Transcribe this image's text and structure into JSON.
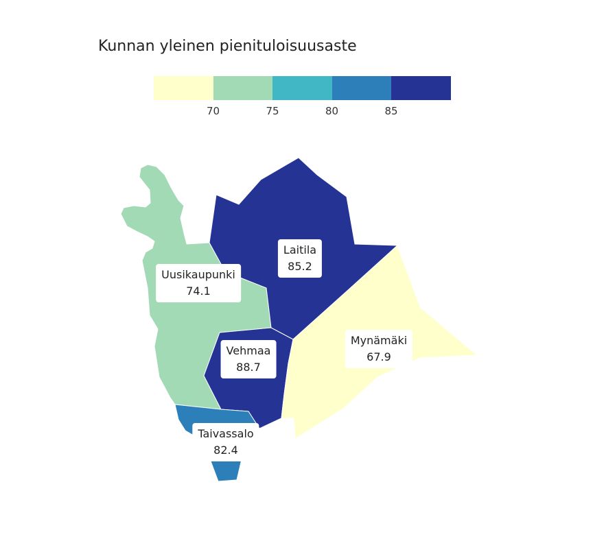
{
  "title": "Kunnan yleinen pienituloisuusaste",
  "legend": {
    "colors": [
      "#ffffcc",
      "#a1dab4",
      "#41b6c4",
      "#2c7fb8",
      "#253494"
    ],
    "ticks": [
      "70",
      "75",
      "80",
      "85"
    ]
  },
  "municipalities": [
    {
      "name": "Uusikaupunki",
      "value": "74.1",
      "color": "#a1dab4"
    },
    {
      "name": "Laitila",
      "value": "85.2",
      "color": "#253494"
    },
    {
      "name": "Vehmaa",
      "value": "88.7",
      "color": "#253494"
    },
    {
      "name": "Mynämäki",
      "value": "67.9",
      "color": "#ffffcc"
    },
    {
      "name": "Taivassalo",
      "value": "82.4",
      "color": "#2c7fb8"
    }
  ]
}
